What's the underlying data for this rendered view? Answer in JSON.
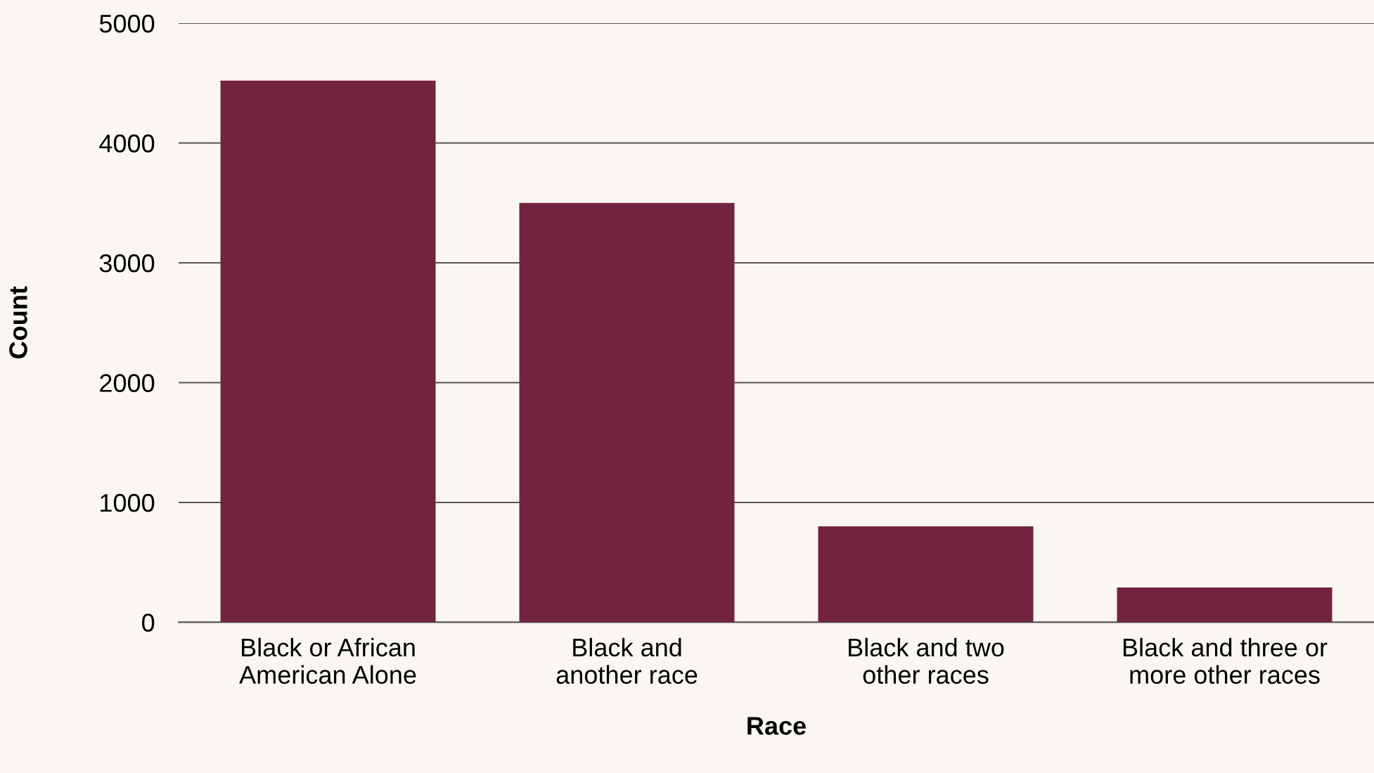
{
  "chart_data": {
    "type": "bar",
    "xlabel": "Race",
    "ylabel": "Count",
    "categories": [
      "Black or African\nAmerican Alone",
      "Black and\nanother race",
      "Black and two\nother races",
      "Black and three or\nmore other races"
    ],
    "values": [
      4520,
      3500,
      800,
      290
    ],
    "color": "#722340",
    "ylim": [
      0,
      5000
    ],
    "yticks": [
      0,
      1000,
      2000,
      3000,
      4000,
      5000
    ],
    "grid": "y",
    "legend": false
  }
}
